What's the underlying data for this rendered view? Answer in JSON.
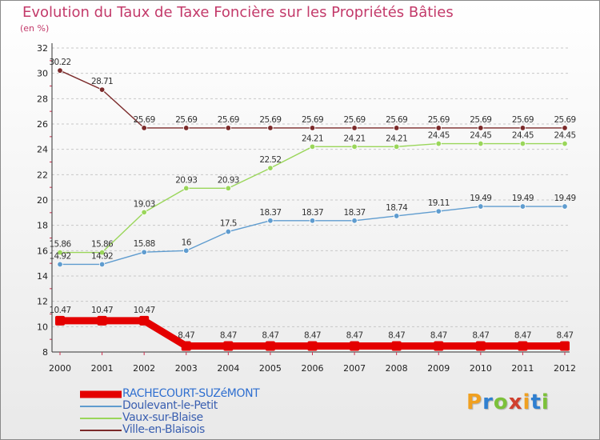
{
  "title": "Evolution du Taux de Taxe Foncière sur les Propriétés Bâties",
  "subtitle": "(en %)",
  "brand": {
    "text": "Proxiti",
    "letters": [
      {
        "ch": "P",
        "color": "#f0a020"
      },
      {
        "ch": "r",
        "color": "#2f7fd0"
      },
      {
        "ch": "o",
        "color": "#7cc13a"
      },
      {
        "ch": "x",
        "color": "#d0402e"
      },
      {
        "ch": "i",
        "color": "#f0a020"
      },
      {
        "ch": "t",
        "color": "#2f7fd0"
      },
      {
        "ch": "i",
        "color": "#7cc13a"
      }
    ]
  },
  "chart_data": {
    "type": "line",
    "title": "Evolution du Taux de Taxe Foncière sur les Propriétés Bâties",
    "ylabel": "(en %)",
    "xlabel": "",
    "ylim": [
      8,
      32
    ],
    "yticks": [
      8,
      10,
      12,
      14,
      16,
      18,
      20,
      22,
      24,
      26,
      28,
      30,
      32
    ],
    "grid": "horizontal dashed",
    "x": [
      "2000",
      "2001",
      "2002",
      "2003",
      "2004",
      "2005",
      "2006",
      "2007",
      "2008",
      "2009",
      "2010",
      "2011",
      "2012"
    ],
    "series": [
      {
        "name": "Ville-en-Blaisois",
        "color": "#7b2a2a",
        "stroke": 1.4,
        "values": [
          30.22,
          28.71,
          25.69,
          25.69,
          25.69,
          25.69,
          25.69,
          25.69,
          25.69,
          25.69,
          25.69,
          25.69,
          25.69
        ],
        "labels": [
          "30.22",
          "28.71",
          "25.69",
          "25.69",
          "25.69",
          "25.69",
          "25.69",
          "25.69",
          "25.69",
          "25.69",
          "25.69",
          "25.69",
          "25.69"
        ]
      },
      {
        "name": "Vaux-sur-Blaise",
        "color": "#9ad65a",
        "stroke": 1.4,
        "values": [
          15.86,
          15.86,
          19.03,
          20.93,
          20.93,
          22.52,
          24.21,
          24.21,
          24.21,
          24.45,
          24.45,
          24.45,
          24.45
        ],
        "labels": [
          "15.86",
          "15.86",
          "19.03",
          "20.93",
          "20.93",
          "22.52",
          "24.21",
          "24.21",
          "24.21",
          "24.45",
          "24.45",
          "24.45",
          "24.45"
        ]
      },
      {
        "name": "Doulevant-le-Petit",
        "color": "#5f9ccf",
        "stroke": 1.4,
        "values": [
          14.92,
          14.92,
          15.88,
          16,
          17.5,
          18.37,
          18.37,
          18.37,
          18.74,
          19.11,
          19.49,
          19.49,
          19.49
        ],
        "labels": [
          "14.92",
          "14.92",
          "15.88",
          "16",
          "17.5",
          "18.37",
          "18.37",
          "18.37",
          "18.74",
          "19.11",
          "19.49",
          "19.49",
          "19.49"
        ]
      },
      {
        "name": "RACHECOURT-SUZéMONT",
        "color": "#e40000",
        "stroke": 9,
        "values": [
          10.47,
          10.47,
          10.47,
          8.47,
          8.47,
          8.47,
          8.47,
          8.47,
          8.47,
          8.47,
          8.47,
          8.47,
          8.47
        ],
        "labels": [
          "10.47",
          "10.47",
          "10.47",
          "8.47",
          "8.47",
          "8.47",
          "8.47",
          "8.47",
          "8.47",
          "8.47",
          "8.47",
          "8.47",
          "8.47"
        ]
      }
    ],
    "legend": {
      "placement": "bottom-left",
      "order": [
        "RACHECOURT-SUZéMONT",
        "Doulevant-le-Petit",
        "Vaux-sur-Blaise",
        "Ville-en-Blaisois"
      ]
    }
  }
}
